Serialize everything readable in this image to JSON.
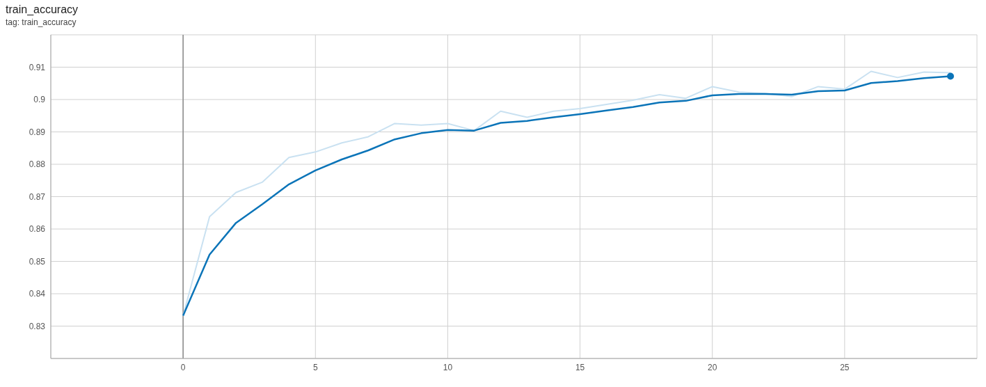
{
  "chart_data": {
    "type": "line",
    "title": "train_accuracy",
    "subtitle": "tag: train_accuracy",
    "x": [
      0,
      1,
      2,
      3,
      4,
      5,
      6,
      7,
      8,
      9,
      10,
      11,
      12,
      13,
      14,
      15,
      16,
      17,
      18,
      19,
      20,
      21,
      22,
      23,
      24,
      25,
      26,
      27,
      28,
      29
    ],
    "series": [
      {
        "color": "#c9e1f1",
        "values": [
          0.8332,
          0.8638,
          0.8713,
          0.8745,
          0.8821,
          0.8838,
          0.8866,
          0.8885,
          0.8926,
          0.8921,
          0.8926,
          0.8904,
          0.8964,
          0.8945,
          0.8964,
          0.8972,
          0.8985,
          0.8998,
          0.9015,
          0.9004,
          0.904,
          0.9023,
          0.9019,
          0.9009,
          0.904,
          0.9032,
          0.9087,
          0.9068,
          0.9085,
          0.9083
        ]
      },
      {
        "color": "#0b74b8",
        "values": [
          0.8332,
          0.8521,
          0.8619,
          0.8677,
          0.8738,
          0.8781,
          0.8815,
          0.8843,
          0.8877,
          0.8896,
          0.8906,
          0.8904,
          0.8928,
          0.8934,
          0.8945,
          0.8955,
          0.8966,
          0.8977,
          0.8991,
          0.8996,
          0.9013,
          0.9017,
          0.9017,
          0.9015,
          0.9026,
          0.9028,
          0.9051,
          0.9057,
          0.9066,
          0.9072
        ]
      }
    ],
    "xlim": [
      -5,
      30
    ],
    "xticks": [
      0,
      5,
      10,
      15,
      20,
      25
    ],
    "ylim": [
      0.82,
      0.92
    ],
    "yticks": [
      0.83,
      0.84,
      0.85,
      0.86,
      0.87,
      0.88,
      0.89,
      0.9,
      0.91
    ],
    "ref_lines": [
      {
        "axis": "x",
        "value": 0,
        "color": "#8a8a8a"
      }
    ],
    "grid": true,
    "line_style": "solid"
  }
}
